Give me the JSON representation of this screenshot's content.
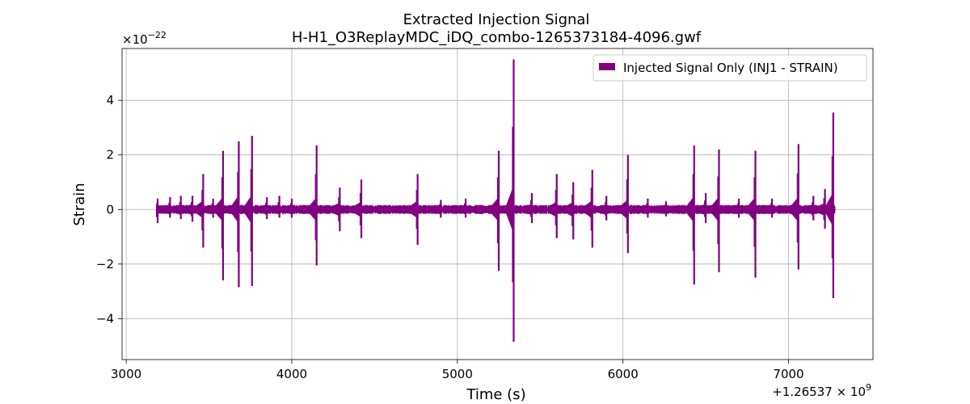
{
  "chart_data": {
    "type": "line",
    "title": "Extracted Injection Signal",
    "subtitle": "H-H1_O3ReplayMDC_iDQ_combo-1265373184-4096.gwf",
    "xlabel": "Time (s)",
    "ylabel": "Strain",
    "x_offset_label": "+1.26537 × 10",
    "x_offset_exp": "9",
    "y_scale_label": "×10",
    "y_scale_exp": "−22",
    "xlim": [
      2975,
      7510
    ],
    "ylim": [
      -5.5,
      5.9
    ],
    "xticks": [
      3000,
      4000,
      5000,
      6000,
      7000
    ],
    "xtick_labels": [
      "3000",
      "4000",
      "5000",
      "6000",
      "7000"
    ],
    "yticks": [
      -4,
      -2,
      0,
      2,
      4
    ],
    "ytick_labels": [
      "−4",
      "−2",
      "0",
      "2",
      "4"
    ],
    "grid": true,
    "legend_position": "top-right",
    "colors": {
      "series": "#800080",
      "grid": "#b0b0b0",
      "frame": "#000000"
    },
    "series": [
      {
        "name": "Injected Signal Only (INJ1 - STRAIN)",
        "color": "#800080",
        "x_range": [
          3184,
          7280
        ],
        "baseline_amplitude": 0.12,
        "spikes": [
          {
            "x": 3190,
            "max": 0.4,
            "min": -0.5
          },
          {
            "x": 3265,
            "max": 0.45,
            "min": -0.3
          },
          {
            "x": 3330,
            "max": 0.5,
            "min": -0.35
          },
          {
            "x": 3400,
            "max": 0.5,
            "min": -0.45
          },
          {
            "x": 3465,
            "max": 1.3,
            "min": -1.4
          },
          {
            "x": 3525,
            "max": 0.4,
            "min": -0.3
          },
          {
            "x": 3585,
            "max": 2.15,
            "min": -2.6
          },
          {
            "x": 3680,
            "max": 2.5,
            "min": -2.85
          },
          {
            "x": 3760,
            "max": 2.7,
            "min": -2.8
          },
          {
            "x": 3850,
            "max": 0.45,
            "min": -0.35
          },
          {
            "x": 3925,
            "max": 0.5,
            "min": -0.3
          },
          {
            "x": 4000,
            "max": 0.4,
            "min": -0.3
          },
          {
            "x": 4150,
            "max": 2.35,
            "min": -2.05
          },
          {
            "x": 4290,
            "max": 0.8,
            "min": -0.8
          },
          {
            "x": 4420,
            "max": 1.1,
            "min": -1.05
          },
          {
            "x": 4760,
            "max": 1.3,
            "min": -1.3
          },
          {
            "x": 4900,
            "max": 0.35,
            "min": -0.3
          },
          {
            "x": 5050,
            "max": 0.4,
            "min": -0.3
          },
          {
            "x": 5250,
            "max": 2.15,
            "min": -2.25
          },
          {
            "x": 5340,
            "max": 5.5,
            "min": -4.85
          },
          {
            "x": 5450,
            "max": 0.6,
            "min": -0.5
          },
          {
            "x": 5600,
            "max": 1.3,
            "min": -1.05
          },
          {
            "x": 5700,
            "max": 1.0,
            "min": -1.1
          },
          {
            "x": 5815,
            "max": 1.45,
            "min": -1.4
          },
          {
            "x": 5900,
            "max": 0.5,
            "min": -0.4
          },
          {
            "x": 6030,
            "max": 2.0,
            "min": -1.6
          },
          {
            "x": 6150,
            "max": 0.4,
            "min": -0.3
          },
          {
            "x": 6260,
            "max": 0.3,
            "min": -0.25
          },
          {
            "x": 6430,
            "max": 2.35,
            "min": -2.75
          },
          {
            "x": 6500,
            "max": 0.6,
            "min": -0.5
          },
          {
            "x": 6580,
            "max": 2.2,
            "min": -2.3
          },
          {
            "x": 6700,
            "max": 0.4,
            "min": -0.3
          },
          {
            "x": 6800,
            "max": 2.15,
            "min": -2.5
          },
          {
            "x": 6900,
            "max": 0.4,
            "min": -0.3
          },
          {
            "x": 7060,
            "max": 2.4,
            "min": -2.2
          },
          {
            "x": 7150,
            "max": 0.5,
            "min": -0.4
          },
          {
            "x": 7220,
            "max": 0.75,
            "min": -0.7
          },
          {
            "x": 7270,
            "max": 3.55,
            "min": -3.25
          }
        ]
      }
    ]
  }
}
